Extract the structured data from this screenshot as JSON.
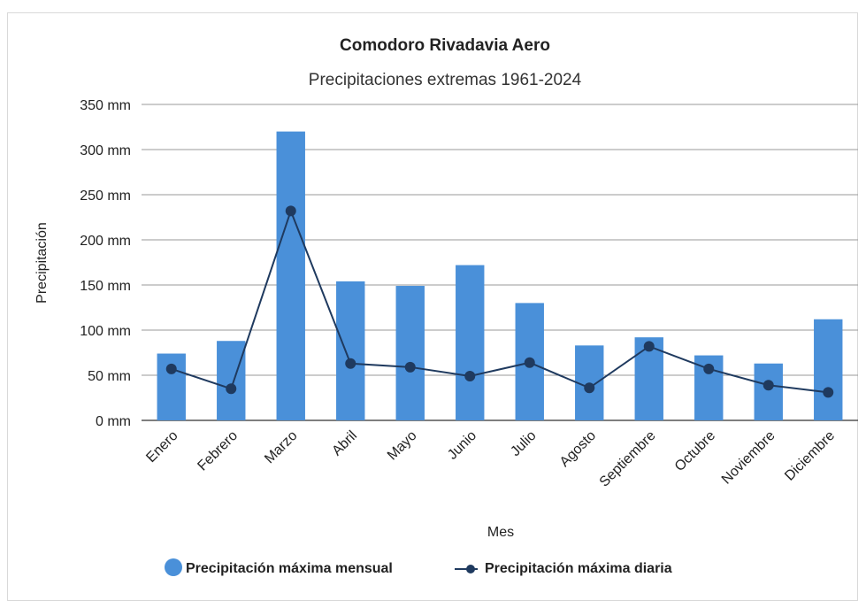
{
  "chart_data": {
    "type": "bar",
    "title": "Comodoro Rivadavia Aero",
    "subtitle": "Precipitaciones extremas 1961-2024",
    "xlabel": "Mes",
    "ylabel": "Precipitación",
    "ylim": [
      0,
      350
    ],
    "yticks": [
      0,
      50,
      100,
      150,
      200,
      250,
      300,
      350
    ],
    "ytick_labels": [
      "0 mm",
      "50 mm",
      "100 mm",
      "150 mm",
      "200 mm",
      "250 mm",
      "300 mm",
      "350 mm"
    ],
    "grid": true,
    "legend_position": "bottom",
    "categories": [
      "Enero",
      "Febrero",
      "Marzo",
      "Abril",
      "Mayo",
      "Junio",
      "Julio",
      "Agosto",
      "Septiembre",
      "Octubre",
      "Noviembre",
      "Diciembre"
    ],
    "series": [
      {
        "name": "Precipitación máxima mensual",
        "type": "bar",
        "color": "#4a90d9",
        "values": [
          74,
          88,
          320,
          154,
          149,
          172,
          130,
          83,
          92,
          72,
          63,
          112
        ]
      },
      {
        "name": "Precipitación máxima diaria",
        "type": "line",
        "color": "#1f3a5f",
        "values": [
          57,
          35,
          232,
          63,
          59,
          49,
          64,
          36,
          82,
          57,
          39,
          31
        ]
      }
    ]
  }
}
